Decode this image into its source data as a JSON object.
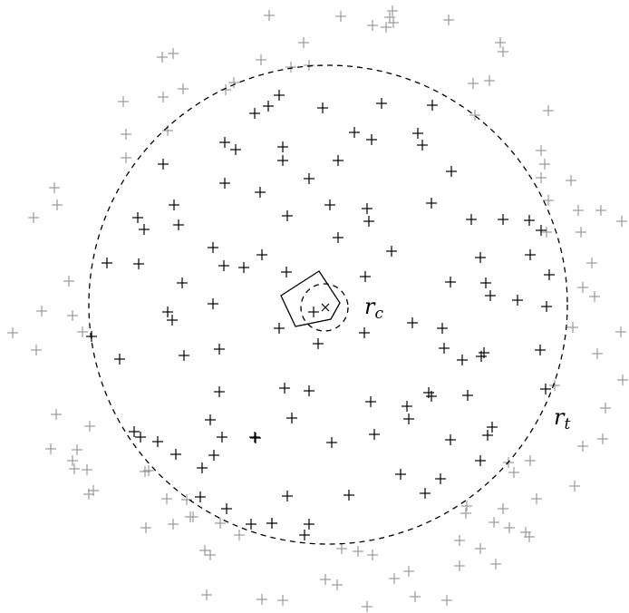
{
  "labels": {
    "core_radius_symbol": "r",
    "core_radius_subscript": "c",
    "tidal_radius_symbol": "r",
    "tidal_radius_subscript": "t"
  },
  "colors": {
    "inner_star": "#000000",
    "outer_star": "#9a9a9a",
    "background": "#ffffff"
  },
  "markers": {
    "star": "plus",
    "center": "cross"
  }
}
